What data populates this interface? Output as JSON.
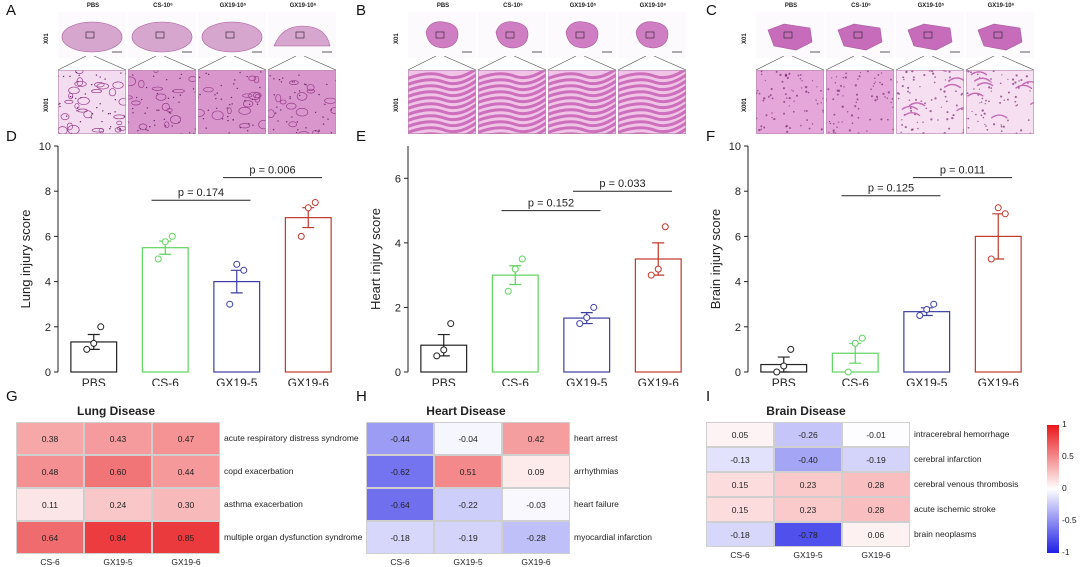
{
  "panels": {
    "A": "A",
    "B": "B",
    "C": "C",
    "D": "D",
    "E": "E",
    "F": "F",
    "G": "G",
    "H": "H",
    "I": "I"
  },
  "histology": {
    "groups": [
      "PBS",
      "CS-10⁶",
      "GX19-10⁵",
      "GX19-10⁶"
    ],
    "mag_low": "X01",
    "mag_high": "X001",
    "colors": {
      "lung_bg": "#f1dceb",
      "lung_tissue": "#c77bb8",
      "heart_tissue": "#d98ccc",
      "brain_tissue": "#e7a6d8"
    }
  },
  "chart_data": [
    {
      "type": "bar",
      "panel": "D",
      "ylabel": "Lung injury score",
      "categories": [
        "PBS",
        "CS-6",
        "GX19-5",
        "GX19-6"
      ],
      "values": [
        1.33,
        5.5,
        4.0,
        6.83
      ],
      "errors": [
        0.33,
        0.29,
        0.5,
        0.44
      ],
      "points": [
        [
          1.0,
          1.0,
          2.0
        ],
        [
          5.0,
          5.5,
          6.0
        ],
        [
          3.0,
          4.5,
          4.5
        ],
        [
          6.0,
          7.0,
          7.5
        ]
      ],
      "colors": [
        "#222222",
        "#5fd35f",
        "#3b3fa0",
        "#c0392b"
      ],
      "ylim": [
        0,
        10
      ],
      "yticks": [
        0,
        2,
        4,
        6,
        8,
        10
      ],
      "comparisons": [
        {
          "from": 1,
          "to": 2,
          "label": "p = 0.174",
          "y": 7.6
        },
        {
          "from": 2,
          "to": 3,
          "label": "p = 0.006",
          "y": 8.6
        }
      ]
    },
    {
      "type": "bar",
      "panel": "E",
      "ylabel": "Heart injury score",
      "categories": [
        "PBS",
        "CS-6",
        "GX19-5",
        "GX19-6"
      ],
      "values": [
        0.83,
        3.0,
        1.67,
        3.5
      ],
      "errors": [
        0.33,
        0.29,
        0.17,
        0.5
      ],
      "points": [
        [
          0.5,
          0.5,
          1.5
        ],
        [
          2.5,
          3.0,
          3.5
        ],
        [
          1.5,
          1.5,
          2.0
        ],
        [
          3.0,
          3.0,
          4.5
        ]
      ],
      "colors": [
        "#222222",
        "#5fd35f",
        "#3b3fa0",
        "#c0392b"
      ],
      "ylim": [
        0,
        7
      ],
      "yticks": [
        0,
        2,
        4,
        6
      ],
      "comparisons": [
        {
          "from": 1,
          "to": 2,
          "label": "p = 0.152",
          "y": 5.0
        },
        {
          "from": 2,
          "to": 3,
          "label": "p = 0.033",
          "y": 5.6
        }
      ]
    },
    {
      "type": "bar",
      "panel": "F",
      "ylabel": "Brain injury score",
      "categories": [
        "PBS",
        "CS-6",
        "GX19-5",
        "GX19-6"
      ],
      "values": [
        0.33,
        0.83,
        2.67,
        6.0
      ],
      "errors": [
        0.33,
        0.44,
        0.17,
        1.0
      ],
      "points": [
        [
          0.0,
          0.0,
          1.0
        ],
        [
          0.0,
          1.0,
          1.5
        ],
        [
          2.5,
          2.5,
          3.0
        ],
        [
          5.0,
          7.0,
          7.0
        ]
      ],
      "colors": [
        "#222222",
        "#5fd35f",
        "#3b3fa0",
        "#c0392b"
      ],
      "ylim": [
        0,
        10
      ],
      "yticks": [
        0,
        2,
        4,
        6,
        8,
        10
      ],
      "comparisons": [
        {
          "from": 1,
          "to": 2,
          "label": "p = 0.125",
          "y": 7.8
        },
        {
          "from": 2,
          "to": 3,
          "label": "p = 0.011",
          "y": 8.6
        }
      ]
    },
    {
      "type": "heatmap",
      "panel": "G",
      "title": "Lung Disease",
      "columns": [
        "CS-6",
        "GX19-5",
        "GX19-6"
      ],
      "rows": [
        "acute respiratory distress syndrome",
        "copd exacerbation",
        "asthma exacerbation",
        "multiple organ dysfunction syndrome"
      ],
      "values": [
        [
          0.38,
          0.43,
          0.47
        ],
        [
          0.48,
          0.6,
          0.44
        ],
        [
          0.11,
          0.24,
          0.3
        ],
        [
          0.64,
          0.84,
          0.85
        ]
      ],
      "labels": [
        [
          "0.38",
          "0.43",
          "0.47"
        ],
        [
          "0.48",
          "0.60",
          "0.44"
        ],
        [
          "0.11",
          "0.24",
          "0.30"
        ],
        [
          "0.64",
          "0.84",
          "0.85"
        ]
      ]
    },
    {
      "type": "heatmap",
      "panel": "H",
      "title": "Heart Disease",
      "columns": [
        "CS-6",
        "GX19-5",
        "GX19-6"
      ],
      "rows": [
        "heart arrest",
        "arrhythmias",
        "heart failure",
        "myocardial infarction"
      ],
      "values": [
        [
          -0.44,
          -0.04,
          0.42
        ],
        [
          -0.62,
          0.51,
          0.09
        ],
        [
          -0.64,
          -0.22,
          -0.03
        ],
        [
          -0.18,
          -0.19,
          -0.28
        ]
      ],
      "labels": [
        [
          "-0.44",
          "-0.04",
          "0.42"
        ],
        [
          "-0.62",
          "0.51",
          "0.09"
        ],
        [
          "-0.64",
          "-0.22",
          "-0.03"
        ],
        [
          "-0.18",
          "-0.19",
          "-0.28"
        ]
      ]
    },
    {
      "type": "heatmap",
      "panel": "I",
      "title": "Brain Disease",
      "columns": [
        "CS-6",
        "GX19-5",
        "GX19-6"
      ],
      "rows": [
        "intracerebral hemorrhage",
        "cerebral infarction",
        "cerebral venous thrombosis",
        "acute ischemic stroke",
        "brain neoplasms"
      ],
      "values": [
        [
          0.05,
          -0.26,
          -0.01
        ],
        [
          -0.13,
          -0.4,
          -0.19
        ],
        [
          0.15,
          0.23,
          0.28
        ],
        [
          0.15,
          0.23,
          0.28
        ],
        [
          -0.18,
          -0.78,
          0.06
        ]
      ],
      "labels": [
        [
          "0.05",
          "-0.26",
          "-0.01"
        ],
        [
          "-0.13",
          "-0.40",
          "-0.19"
        ],
        [
          "0.15",
          "0.23",
          "0.28"
        ],
        [
          "0.15",
          "0.23",
          "0.28"
        ],
        [
          "-0.18",
          "-0.78",
          "0.06"
        ]
      ]
    }
  ],
  "colorbar": {
    "ticks": [
      "1",
      "0.5",
      "0",
      "-0.5",
      "-1"
    ],
    "high": "#e8171b",
    "mid": "#ffffff",
    "low": "#1f1fe6"
  }
}
